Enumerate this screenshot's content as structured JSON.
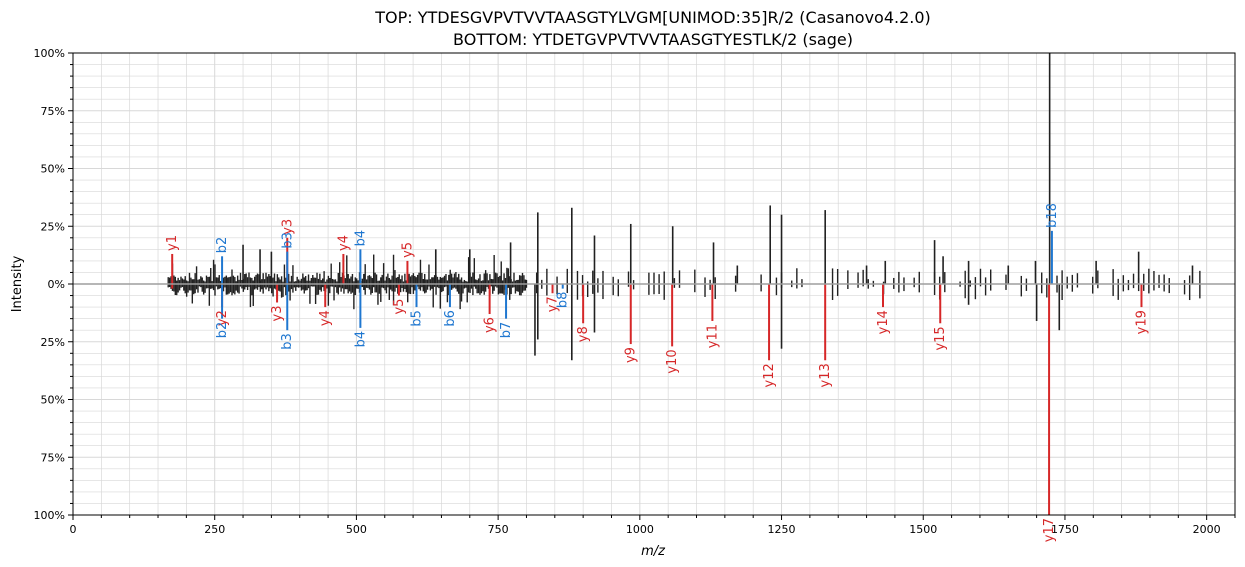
{
  "chart_data": {
    "type": "bar",
    "title_top": "TOP: YTDESGVPVTVVTAASGTYLVGM[UNIMOD:35]R/2    (Casanovo4.2.0)",
    "title_bottom": "BOTTOM: YTDETGVPVTVVTAASGTYESTLK/2    (sage)",
    "xlabel": "m/z",
    "ylabel": "Intensity",
    "xlim": [
      0,
      2050
    ],
    "ylim": [
      -100,
      100
    ],
    "x_ticks": [
      0,
      250,
      500,
      750,
      1000,
      1250,
      1500,
      1750,
      2000
    ],
    "y_tick_values": [
      100,
      75,
      50,
      25,
      0,
      -25,
      -50,
      -75,
      -100
    ],
    "y_tick_labels": [
      "100%",
      "75%",
      "50%",
      "25%",
      "0%",
      "25%",
      "50%",
      "75%",
      "100%"
    ],
    "grid": true,
    "colors": {
      "unmatched": "#212121",
      "y_ion": "#d62728",
      "b_ion": "#1f77d0",
      "baseline": "#9e9e9e",
      "grid": "#d8d8d8"
    },
    "top_peaks": [
      [
        175,
        13,
        "y",
        "y1"
      ],
      [
        263,
        12,
        "b",
        "b2"
      ],
      [
        378,
        20,
        "y",
        "y3"
      ],
      [
        378,
        14,
        "b",
        "b3"
      ],
      [
        477,
        13,
        "y",
        "y4"
      ],
      [
        507,
        15,
        "b",
        "b4"
      ],
      [
        590,
        10,
        "y",
        "y5"
      ],
      [
        1727,
        23,
        "b",
        "b18"
      ],
      [
        1723,
        100,
        "u",
        ""
      ],
      [
        820,
        31,
        "u",
        ""
      ],
      [
        880,
        33,
        "u",
        ""
      ],
      [
        984,
        26,
        "u",
        ""
      ],
      [
        1058,
        25,
        "u",
        ""
      ],
      [
        1230,
        34,
        "u",
        ""
      ],
      [
        1327,
        32,
        "u",
        ""
      ],
      [
        1250,
        30,
        "u",
        ""
      ],
      [
        1130,
        18,
        "u",
        ""
      ],
      [
        1172,
        8,
        "u",
        ""
      ],
      [
        1433,
        10,
        "u",
        ""
      ],
      [
        1520,
        19,
        "u",
        ""
      ],
      [
        1580,
        10,
        "u",
        ""
      ],
      [
        1650,
        8,
        "u",
        ""
      ],
      [
        1805,
        10,
        "u",
        ""
      ],
      [
        1880,
        14,
        "u",
        ""
      ],
      [
        1975,
        8,
        "u",
        ""
      ],
      [
        920,
        21,
        "u",
        ""
      ],
      [
        700,
        15,
        "u",
        ""
      ],
      [
        772,
        18,
        "u",
        ""
      ],
      [
        300,
        17,
        "u",
        ""
      ],
      [
        330,
        15,
        "u",
        ""
      ],
      [
        350,
        14,
        "u",
        ""
      ],
      [
        640,
        15,
        "u",
        ""
      ],
      [
        1698,
        10,
        "u",
        ""
      ],
      [
        1535,
        12,
        "u",
        ""
      ],
      [
        1400,
        8,
        "u",
        ""
      ]
    ],
    "bottom_peaks": [
      [
        175,
        -2,
        "y",
        ""
      ],
      [
        263,
        -10,
        "y",
        "y2"
      ],
      [
        263,
        -15,
        "b",
        "b2"
      ],
      [
        360,
        -8,
        "y",
        "y3"
      ],
      [
        378,
        -20,
        "b",
        "b3"
      ],
      [
        445,
        -10,
        "y",
        "y4"
      ],
      [
        507,
        -19,
        "b",
        "b4"
      ],
      [
        575,
        -5,
        "y",
        "y5"
      ],
      [
        606,
        -10,
        "b",
        "b5"
      ],
      [
        665,
        -10,
        "b",
        "b6"
      ],
      [
        735,
        -13,
        "y",
        "y6"
      ],
      [
        764,
        -15,
        "b",
        "b7"
      ],
      [
        846,
        -4,
        "y",
        "y7"
      ],
      [
        864,
        -2,
        "b",
        "b8"
      ],
      [
        900,
        -17,
        "y",
        "y8"
      ],
      [
        984,
        -26,
        "y",
        "y9"
      ],
      [
        1057,
        -27,
        "y",
        "y10"
      ],
      [
        1128,
        -16,
        "y",
        "y11"
      ],
      [
        1228,
        -33,
        "y",
        "y12"
      ],
      [
        1327,
        -33,
        "y",
        "y13"
      ],
      [
        1429,
        -10,
        "y",
        "y14"
      ],
      [
        1530,
        -17,
        "y",
        "y15"
      ],
      [
        1722,
        -100,
        "y",
        "y17"
      ],
      [
        1885,
        -10,
        "y",
        "y19"
      ],
      [
        815,
        -31,
        "u",
        ""
      ],
      [
        880,
        -33,
        "u",
        ""
      ],
      [
        1250,
        -28,
        "u",
        ""
      ],
      [
        1740,
        -20,
        "u",
        ""
      ],
      [
        1700,
        -16,
        "u",
        ""
      ],
      [
        920,
        -21,
        "u",
        ""
      ],
      [
        820,
        -24,
        "u",
        ""
      ],
      [
        1580,
        -9,
        "u",
        ""
      ]
    ]
  }
}
